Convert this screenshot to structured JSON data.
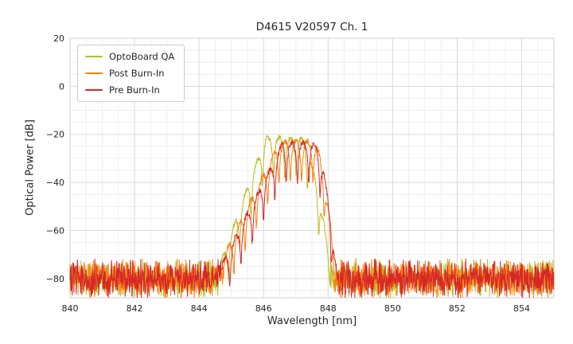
{
  "chart_data": {
    "type": "line",
    "title": "D4615 V20597 Ch. 1",
    "xlabel": "Wavelength [nm]",
    "ylabel": "Optical Power [dB]",
    "xlim": [
      840,
      855
    ],
    "ylim": [
      -88,
      20
    ],
    "xticks": [
      840,
      842,
      844,
      846,
      848,
      850,
      852,
      854
    ],
    "yticks": [
      20,
      0,
      -20,
      -40,
      -60,
      -80
    ],
    "x_minor_step_nm": 0.5,
    "y_minor_step_db": 5,
    "grid": true,
    "legend_position": "upper left",
    "noise_floor": {
      "mean_db": -80,
      "spread_db": 9,
      "x_step_nm": 0.01
    },
    "mode_spacing_nm": 0.35,
    "mode_dip_db": 16,
    "series": [
      {
        "name": "OptoBoard QA",
        "color": "#bcbd22",
        "seed": 3,
        "peak_db": -21.5,
        "center_nm": 846.6,
        "flat_nm": 0.55,
        "left_width_nm": 1.6,
        "left_exp": 1.0,
        "right_width_nm": 1.0,
        "right_exp": 1.6,
        "mode_phase_nm": 0.06
      },
      {
        "name": "Post Burn-In",
        "color": "#ff7f0e",
        "seed": 11,
        "peak_db": -23.0,
        "center_nm": 847.0,
        "flat_nm": 0.5,
        "left_width_nm": 2.2,
        "left_exp": 1.0,
        "right_width_nm": 0.75,
        "right_exp": 2.0,
        "mode_phase_nm": 0.18
      },
      {
        "name": "Pre Burn-In",
        "color": "#d62728",
        "seed": 5,
        "peak_db": -23.5,
        "center_nm": 847.05,
        "flat_nm": 0.45,
        "left_width_nm": 2.25,
        "left_exp": 1.0,
        "right_width_nm": 0.8,
        "right_exp": 2.0,
        "mode_phase_nm": 0.0
      }
    ]
  }
}
